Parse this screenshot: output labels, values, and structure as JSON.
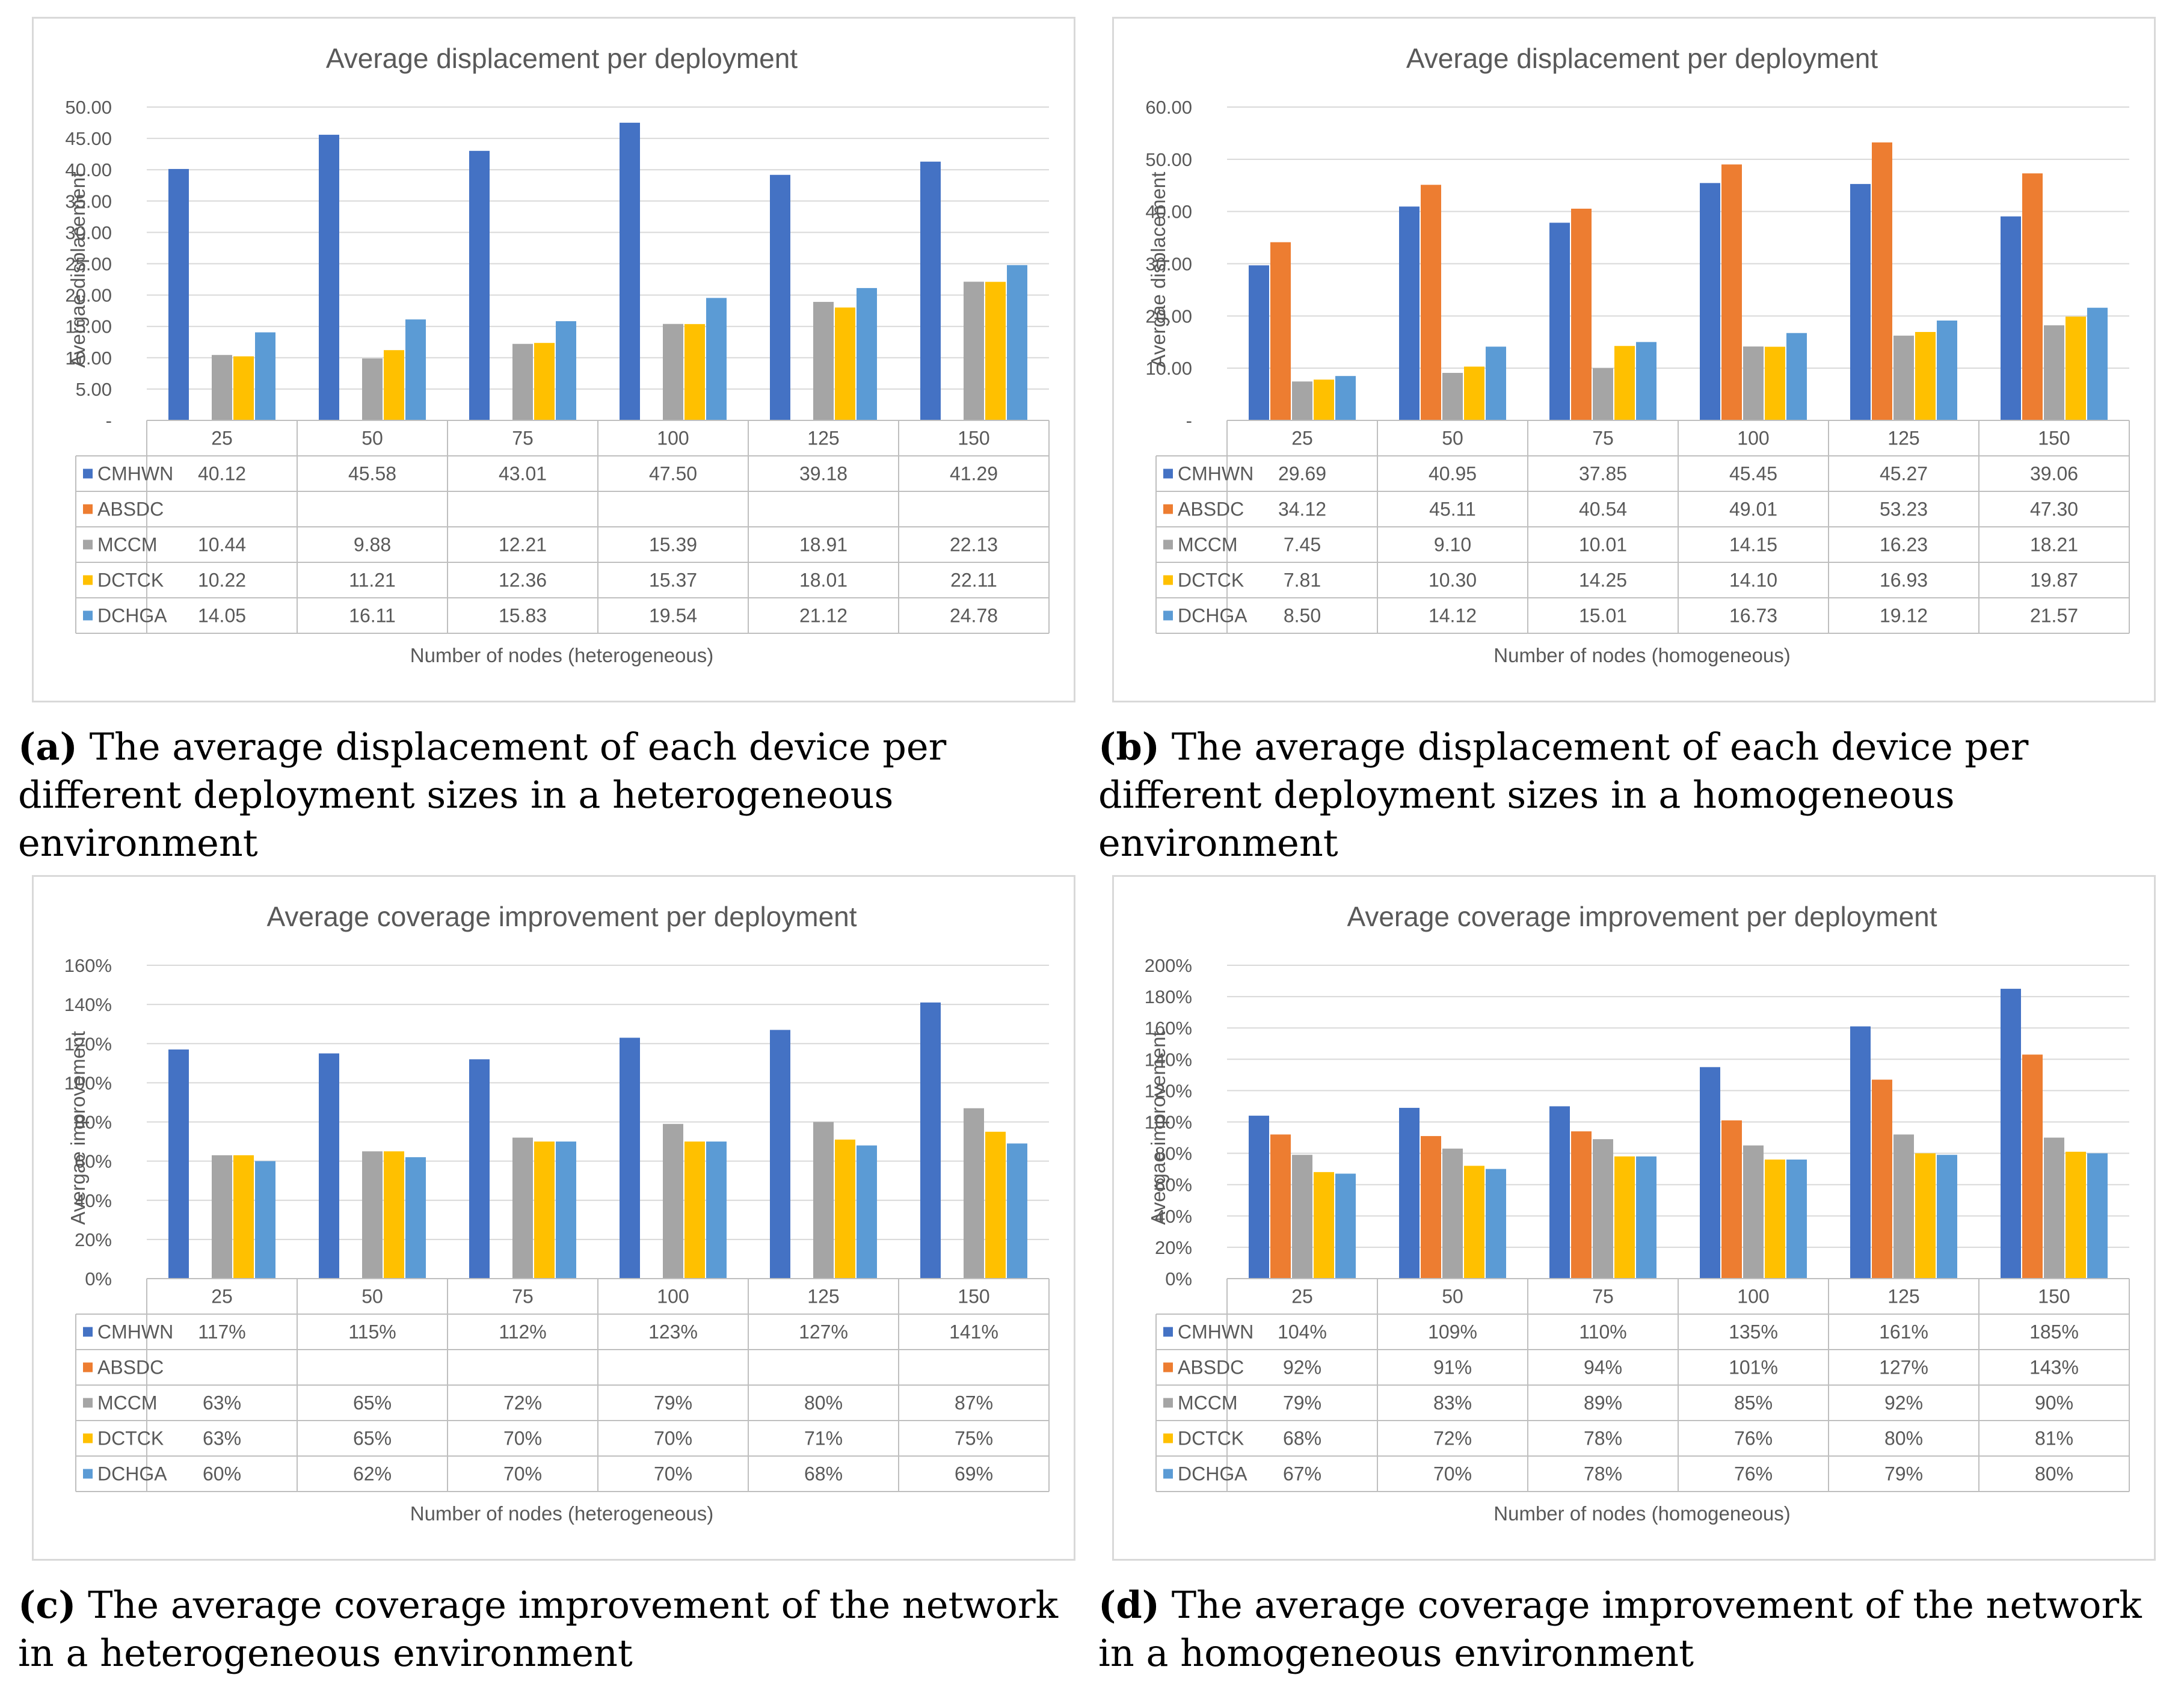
{
  "series_colors": {
    "CMHWN": "#4472C4",
    "ABSDC": "#ED7D31",
    "MCCM": "#A5A5A5",
    "DCTCK": "#FFC000",
    "DCHGA": "#5B9BD5"
  },
  "chart_data": [
    {
      "type": "bar",
      "title": "Average displacement per deployment",
      "ylabel": "Avergae displacement",
      "xlabel": "Number of nodes (heterogeneous)",
      "categories": [
        "25",
        "50",
        "75",
        "100",
        "125",
        "150"
      ],
      "ylim": [
        0,
        50
      ],
      "yticks": [
        "-",
        "5.00",
        "10.00",
        "15.00",
        "20.00",
        "25.00",
        "30.00",
        "35.00",
        "40.00",
        "45.00",
        "50.00"
      ],
      "series": [
        {
          "name": "CMHWN",
          "values": [
            40.12,
            45.58,
            43.01,
            47.5,
            39.18,
            41.29
          ],
          "labels": [
            "40.12",
            "45.58",
            "43.01",
            "47.50",
            "39.18",
            "41.29"
          ]
        },
        {
          "name": "ABSDC",
          "values": [
            null,
            null,
            null,
            null,
            null,
            null
          ],
          "labels": [
            "",
            "",
            "",
            "",
            "",
            ""
          ]
        },
        {
          "name": "MCCM",
          "values": [
            10.44,
            9.88,
            12.21,
            15.39,
            18.91,
            22.13
          ],
          "labels": [
            "10.44",
            "9.88",
            "12.21",
            "15.39",
            "18.91",
            "22.13"
          ]
        },
        {
          "name": "DCTCK",
          "values": [
            10.22,
            11.21,
            12.36,
            15.37,
            18.01,
            22.11
          ],
          "labels": [
            "10.22",
            "11.21",
            "12.36",
            "15.37",
            "18.01",
            "22.11"
          ]
        },
        {
          "name": "DCHGA",
          "values": [
            14.05,
            16.11,
            15.83,
            19.54,
            21.12,
            24.78
          ],
          "labels": [
            "14.05",
            "16.11",
            "15.83",
            "19.54",
            "21.12",
            "24.78"
          ]
        }
      ],
      "caption_label": "(a)",
      "caption_text": "The average displacement of each device per different deployment sizes in a heterogeneous environment"
    },
    {
      "type": "bar",
      "title": "Average displacement per deployment",
      "ylabel": "Avergae displacement",
      "xlabel": "Number of nodes (homogeneous)",
      "categories": [
        "25",
        "50",
        "75",
        "100",
        "125",
        "150"
      ],
      "ylim": [
        0,
        60
      ],
      "yticks": [
        "-",
        "10.00",
        "20.00",
        "30.00",
        "40.00",
        "50.00",
        "60.00"
      ],
      "series": [
        {
          "name": "CMHWN",
          "values": [
            29.69,
            40.95,
            37.85,
            45.45,
            45.27,
            39.06
          ],
          "labels": [
            "29.69",
            "40.95",
            "37.85",
            "45.45",
            "45.27",
            "39.06"
          ]
        },
        {
          "name": "ABSDC",
          "values": [
            34.12,
            45.11,
            40.54,
            49.01,
            53.23,
            47.3
          ],
          "labels": [
            "34.12",
            "45.11",
            "40.54",
            "49.01",
            "53.23",
            "47.30"
          ]
        },
        {
          "name": "MCCM",
          "values": [
            7.45,
            9.1,
            10.01,
            14.15,
            16.23,
            18.21
          ],
          "labels": [
            "7.45",
            "9.10",
            "10.01",
            "14.15",
            "16.23",
            "18.21"
          ]
        },
        {
          "name": "DCTCK",
          "values": [
            7.81,
            10.3,
            14.25,
            14.1,
            16.93,
            19.87
          ],
          "labels": [
            "7.81",
            "10.30",
            "14.25",
            "14.10",
            "16.93",
            "19.87"
          ]
        },
        {
          "name": "DCHGA",
          "values": [
            8.5,
            14.12,
            15.01,
            16.73,
            19.12,
            21.57
          ],
          "labels": [
            "8.50",
            "14.12",
            "15.01",
            "16.73",
            "19.12",
            "21.57"
          ]
        }
      ],
      "caption_label": "(b)",
      "caption_text": "The average displacement of each device per different deployment sizes in a homogeneous environment"
    },
    {
      "type": "bar",
      "title": "Average coverage improvement per deployment",
      "ylabel": "Avergae improvement",
      "xlabel": "Number of nodes (heterogeneous)",
      "categories": [
        "25",
        "50",
        "75",
        "100",
        "125",
        "150"
      ],
      "ylim": [
        0,
        160
      ],
      "yticks": [
        "0%",
        "20%",
        "40%",
        "60%",
        "80%",
        "100%",
        "120%",
        "140%",
        "160%"
      ],
      "series": [
        {
          "name": "CMHWN",
          "values": [
            117,
            115,
            112,
            123,
            127,
            141
          ],
          "labels": [
            "117%",
            "115%",
            "112%",
            "123%",
            "127%",
            "141%"
          ]
        },
        {
          "name": "ABSDC",
          "values": [
            null,
            null,
            null,
            null,
            null,
            null
          ],
          "labels": [
            "",
            "",
            "",
            "",
            "",
            ""
          ]
        },
        {
          "name": "MCCM",
          "values": [
            63,
            65,
            72,
            79,
            80,
            87
          ],
          "labels": [
            "63%",
            "65%",
            "72%",
            "79%",
            "80%",
            "87%"
          ]
        },
        {
          "name": "DCTCK",
          "values": [
            63,
            65,
            70,
            70,
            71,
            75
          ],
          "labels": [
            "63%",
            "65%",
            "70%",
            "70%",
            "71%",
            "75%"
          ]
        },
        {
          "name": "DCHGA",
          "values": [
            60,
            62,
            70,
            70,
            68,
            69
          ],
          "labels": [
            "60%",
            "62%",
            "70%",
            "70%",
            "68%",
            "69%"
          ]
        }
      ],
      "caption_label": "(c)",
      "caption_text": "The average coverage improvement of the network in a heterogeneous environment"
    },
    {
      "type": "bar",
      "title": "Average coverage improvement per deployment",
      "ylabel": "Avergae improvement",
      "xlabel": "Number of nodes (homogeneous)",
      "categories": [
        "25",
        "50",
        "75",
        "100",
        "125",
        "150"
      ],
      "ylim": [
        0,
        200
      ],
      "yticks": [
        "0%",
        "20%",
        "40%",
        "60%",
        "80%",
        "100%",
        "120%",
        "140%",
        "160%",
        "180%",
        "200%"
      ],
      "series": [
        {
          "name": "CMHWN",
          "values": [
            104,
            109,
            110,
            135,
            161,
            185
          ],
          "labels": [
            "104%",
            "109%",
            "110%",
            "135%",
            "161%",
            "185%"
          ]
        },
        {
          "name": "ABSDC",
          "values": [
            92,
            91,
            94,
            101,
            127,
            143
          ],
          "labels": [
            "92%",
            "91%",
            "94%",
            "101%",
            "127%",
            "143%"
          ]
        },
        {
          "name": "MCCM",
          "values": [
            79,
            83,
            89,
            85,
            92,
            90
          ],
          "labels": [
            "79%",
            "83%",
            "89%",
            "85%",
            "92%",
            "90%"
          ]
        },
        {
          "name": "DCTCK",
          "values": [
            68,
            72,
            78,
            76,
            80,
            81
          ],
          "labels": [
            "68%",
            "72%",
            "78%",
            "76%",
            "80%",
            "81%"
          ]
        },
        {
          "name": "DCHGA",
          "values": [
            67,
            70,
            78,
            76,
            79,
            80
          ],
          "labels": [
            "67%",
            "70%",
            "78%",
            "76%",
            "79%",
            "80%"
          ]
        }
      ],
      "caption_label": "(d)",
      "caption_text": "The average coverage improvement of the network in a homogeneous environment"
    }
  ]
}
